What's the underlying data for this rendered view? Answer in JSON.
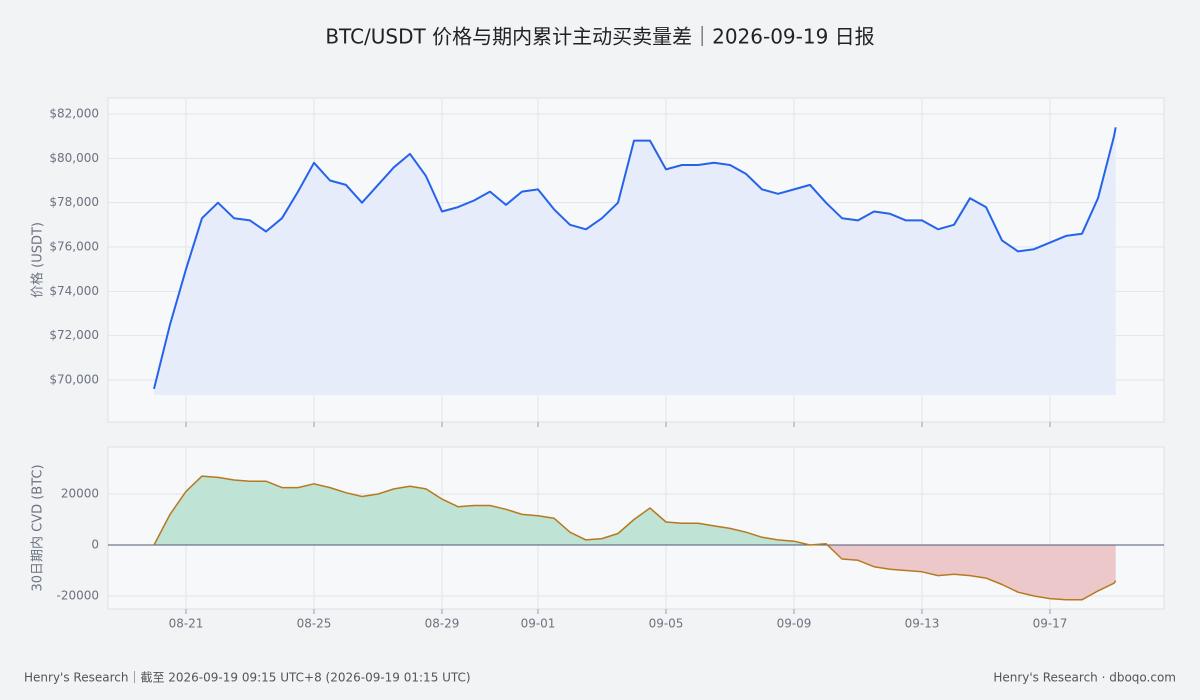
{
  "title": "BTC/USDT 价格与期内累计主动买卖量差｜2026-09-19 日报",
  "footer": {
    "left": "Henry's Research｜截至 2026-09-19 09:15 UTC+8 (2026-09-19 01:15 UTC)",
    "right": "Henry's Research · dboqo.com"
  },
  "chart_data": [
    {
      "type": "area-line",
      "y_label": "价格 (USDT)",
      "color": "#2563eb",
      "fill": "#e3eaf8",
      "grid": true,
      "xlim": [
        "2026-08-18T13:30",
        "2026-09-20T13:30"
      ],
      "xticks": [
        {
          "value": "2026-08-21",
          "label": "08-21"
        },
        {
          "value": "2026-08-25",
          "label": "08-25"
        },
        {
          "value": "2026-08-29",
          "label": "08-29"
        },
        {
          "value": "2026-09-01",
          "label": "09-01"
        },
        {
          "value": "2026-09-05",
          "label": "09-05"
        },
        {
          "value": "2026-09-09",
          "label": "09-09"
        },
        {
          "value": "2026-09-13",
          "label": "09-13"
        },
        {
          "value": "2026-09-17",
          "label": "09-17"
        }
      ],
      "ylim": [
        68106,
        82722
      ],
      "yticks": [
        {
          "value": 70000,
          "label": "$70,000"
        },
        {
          "value": 72000,
          "label": "$72,000"
        },
        {
          "value": 74000,
          "label": "$74,000"
        },
        {
          "value": 76000,
          "label": "$76,000"
        },
        {
          "value": 78000,
          "label": "$78,000"
        },
        {
          "value": 80000,
          "label": "$80,000"
        },
        {
          "value": 82000,
          "label": "$82,000"
        }
      ],
      "x": [
        "2026-08-20T00:00",
        "2026-08-20T12:00",
        "2026-08-21T00:00",
        "2026-08-21T12:00",
        "2026-08-22T00:00",
        "2026-08-22T12:00",
        "2026-08-23T00:00",
        "2026-08-23T12:00",
        "2026-08-24T00:00",
        "2026-08-24T12:00",
        "2026-08-25T00:00",
        "2026-08-25T12:00",
        "2026-08-26T00:00",
        "2026-08-26T12:00",
        "2026-08-27T00:00",
        "2026-08-27T12:00",
        "2026-08-28T00:00",
        "2026-08-28T12:00",
        "2026-08-29T00:00",
        "2026-08-29T12:00",
        "2026-08-30T00:00",
        "2026-08-30T12:00",
        "2026-08-31T00:00",
        "2026-08-31T12:00",
        "2026-09-01T00:00",
        "2026-09-01T12:00",
        "2026-09-02T00:00",
        "2026-09-02T12:00",
        "2026-09-03T00:00",
        "2026-09-03T12:00",
        "2026-09-04T00:00",
        "2026-09-04T12:00",
        "2026-09-05T00:00",
        "2026-09-05T12:00",
        "2026-09-06T00:00",
        "2026-09-06T12:00",
        "2026-09-07T00:00",
        "2026-09-07T12:00",
        "2026-09-08T00:00",
        "2026-09-08T12:00",
        "2026-09-09T00:00",
        "2026-09-09T12:00",
        "2026-09-10T00:00",
        "2026-09-10T12:00",
        "2026-09-11T00:00",
        "2026-09-11T12:00",
        "2026-09-12T00:00",
        "2026-09-12T12:00",
        "2026-09-13T00:00",
        "2026-09-13T12:00",
        "2026-09-14T00:00",
        "2026-09-14T12:00",
        "2026-09-15T00:00",
        "2026-09-15T12:00",
        "2026-09-16T00:00",
        "2026-09-16T12:00",
        "2026-09-17T00:00",
        "2026-09-17T12:00",
        "2026-09-18T00:00",
        "2026-09-18T12:00",
        "2026-09-19T00:00",
        "2026-09-19T01:15"
      ],
      "values": [
        69600,
        72500,
        75000,
        77300,
        78000,
        77300,
        77200,
        76700,
        77300,
        78500,
        79800,
        79000,
        78800,
        78000,
        78800,
        79600,
        80200,
        79200,
        77600,
        77800,
        78100,
        78500,
        77900,
        78500,
        78600,
        77700,
        77000,
        76800,
        77300,
        78000,
        80800,
        80800,
        79500,
        79700,
        79700,
        79800,
        79700,
        79300,
        78600,
        78400,
        78600,
        78800,
        78000,
        77300,
        77200,
        77600,
        77500,
        77200,
        77200,
        76800,
        77000,
        78200,
        77800,
        76300,
        75800,
        75900,
        76200,
        76500,
        76600,
        78200,
        81000,
        81400
      ]
    },
    {
      "type": "signed-area",
      "y_label": "30日期内 CVD (BTC)",
      "color": "#b7791f",
      "positive_fill": "#bfe3d5",
      "negative_fill": "#ecc8cb",
      "grid": true,
      "xlim": [
        "2026-08-18T13:30",
        "2026-09-20T13:30"
      ],
      "xticks": [
        {
          "value": "2026-08-21",
          "label": "08-21"
        },
        {
          "value": "2026-08-25",
          "label": "08-25"
        },
        {
          "value": "2026-08-29",
          "label": "08-29"
        },
        {
          "value": "2026-09-01",
          "label": "09-01"
        },
        {
          "value": "2026-09-05",
          "label": "09-05"
        },
        {
          "value": "2026-09-09",
          "label": "09-09"
        },
        {
          "value": "2026-09-13",
          "label": "09-13"
        },
        {
          "value": "2026-09-17",
          "label": "09-17"
        }
      ],
      "ylim": [
        -25098,
        38431
      ],
      "yticks": [
        -20000,
        0,
        20000
      ],
      "x": [
        "2026-08-20T00:00",
        "2026-08-20T12:00",
        "2026-08-21T00:00",
        "2026-08-21T12:00",
        "2026-08-22T00:00",
        "2026-08-22T12:00",
        "2026-08-23T00:00",
        "2026-08-23T12:00",
        "2026-08-24T00:00",
        "2026-08-24T12:00",
        "2026-08-25T00:00",
        "2026-08-25T12:00",
        "2026-08-26T00:00",
        "2026-08-26T12:00",
        "2026-08-27T00:00",
        "2026-08-27T12:00",
        "2026-08-28T00:00",
        "2026-08-28T12:00",
        "2026-08-29T00:00",
        "2026-08-29T12:00",
        "2026-08-30T00:00",
        "2026-08-30T12:00",
        "2026-08-31T00:00",
        "2026-08-31T12:00",
        "2026-09-01T00:00",
        "2026-09-01T12:00",
        "2026-09-02T00:00",
        "2026-09-02T12:00",
        "2026-09-03T00:00",
        "2026-09-03T12:00",
        "2026-09-04T00:00",
        "2026-09-04T12:00",
        "2026-09-05T00:00",
        "2026-09-05T12:00",
        "2026-09-06T00:00",
        "2026-09-06T12:00",
        "2026-09-07T00:00",
        "2026-09-07T12:00",
        "2026-09-08T00:00",
        "2026-09-08T12:00",
        "2026-09-09T00:00",
        "2026-09-09T12:00",
        "2026-09-10T00:00",
        "2026-09-10T12:00",
        "2026-09-11T00:00",
        "2026-09-11T12:00",
        "2026-09-12T00:00",
        "2026-09-12T12:00",
        "2026-09-13T00:00",
        "2026-09-13T12:00",
        "2026-09-14T00:00",
        "2026-09-14T12:00",
        "2026-09-15T00:00",
        "2026-09-15T12:00",
        "2026-09-16T00:00",
        "2026-09-16T12:00",
        "2026-09-17T00:00",
        "2026-09-17T12:00",
        "2026-09-18T00:00",
        "2026-09-18T12:00",
        "2026-09-19T00:00",
        "2026-09-19T01:15"
      ],
      "values": [
        0,
        12000,
        21000,
        27000,
        26500,
        25500,
        25000,
        25000,
        22500,
        22500,
        24000,
        22500,
        20500,
        19000,
        20000,
        22000,
        23000,
        22000,
        18000,
        15000,
        15500,
        15500,
        14000,
        12000,
        11500,
        10500,
        5000,
        2000,
        2500,
        4500,
        10000,
        14500,
        9000,
        8500,
        8500,
        7500,
        6500,
        5000,
        3000,
        2000,
        1500,
        0,
        500,
        -5500,
        -6000,
        -8500,
        -9500,
        -10000,
        -10500,
        -12000,
        -11500,
        -12000,
        -13000,
        -15500,
        -18500,
        -20000,
        -21000,
        -21500,
        -21500,
        -18000,
        -15000,
        -14000
      ]
    }
  ]
}
